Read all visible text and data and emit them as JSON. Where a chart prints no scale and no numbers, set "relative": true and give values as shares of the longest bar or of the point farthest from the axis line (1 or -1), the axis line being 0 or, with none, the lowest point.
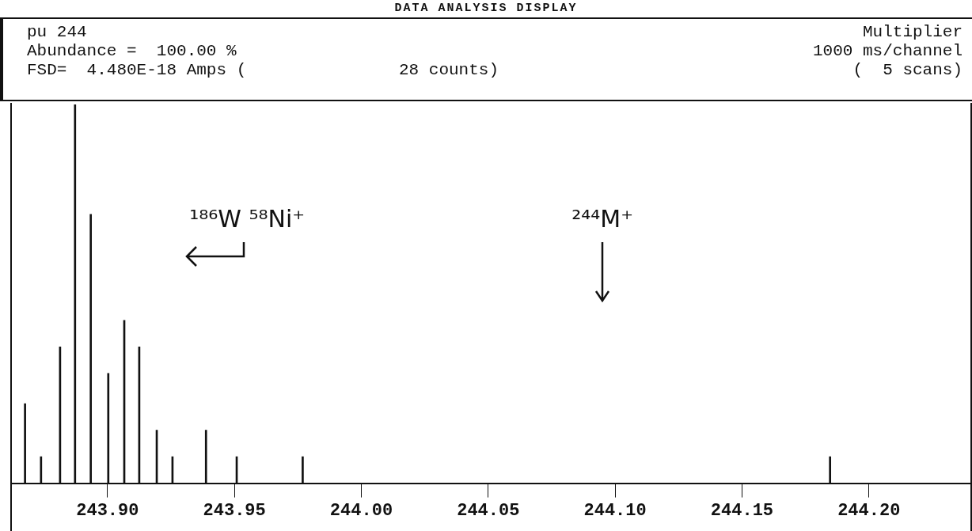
{
  "chart_data": {
    "type": "bar",
    "title": "DATA ANALYSIS DISPLAY",
    "relative": true,
    "color": "#111111",
    "x": [
      243.8675,
      243.8738,
      243.8813,
      243.8872,
      243.8934,
      243.9003,
      243.9066,
      243.9125,
      243.9194,
      243.9256,
      243.9388,
      243.9509,
      243.9769,
      244.1847
    ],
    "values": [
      0.21,
      0.07,
      0.36,
      1,
      0.71,
      0.29,
      0.43,
      0.36,
      0.14,
      0.07,
      0.14,
      0.07,
      0.07,
      0.07
    ],
    "xlim": [
      243.862,
      244.24
    ],
    "xticks": [
      {
        "value": 243.9,
        "label": "243.90"
      },
      {
        "value": 243.95,
        "label": "243.95"
      },
      {
        "value": 244.0,
        "label": "244.00"
      },
      {
        "value": 244.05,
        "label": "244.05"
      },
      {
        "value": 244.1,
        "label": "244.10"
      },
      {
        "value": 244.15,
        "label": "244.15"
      },
      {
        "value": 244.2,
        "label": "244.20"
      }
    ],
    "grid": false,
    "legend": false,
    "annotations": [
      "pu 244",
      "Abundance =  100.00 %",
      "FSD=  4.480E-18 Amps (",
      "28 counts)",
      "Multiplier",
      "1000 ms/channel",
      "(  5 scans)",
      "¹⁸⁶W ⁵⁸Ni⁺",
      "²⁴⁴M⁺"
    ]
  }
}
